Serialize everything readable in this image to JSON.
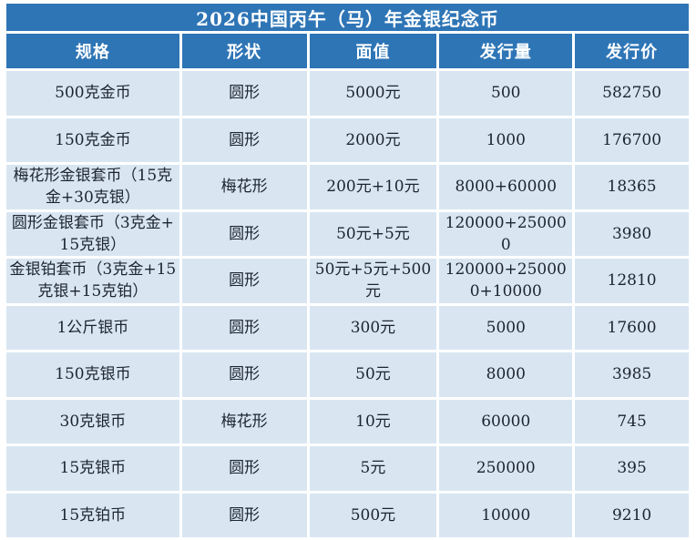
{
  "table": {
    "title": "2026中国丙午（马）年金银纪念币",
    "columns": [
      "规格",
      "形状",
      "面值",
      "发行量",
      "发行价"
    ],
    "rows": [
      [
        "500克金币",
        "圆形",
        "5000元",
        "500",
        "582750"
      ],
      [
        "150克金币",
        "圆形",
        "2000元",
        "1000",
        "176700"
      ],
      [
        "梅花形金银套币（15克金+30克银）",
        "梅花形",
        "200元+10元",
        "8000+60000",
        "18365"
      ],
      [
        "圆形金银套币（3克金+15克银）",
        "圆形",
        "50元+5元",
        "120000+250000",
        "3980"
      ],
      [
        "金银铂套币（3克金+15克银+15克铂）",
        "圆形",
        "50元+5元+500元",
        "120000+250000+10000",
        "12810"
      ],
      [
        "1公斤银币",
        "圆形",
        "300元",
        "5000",
        "17600"
      ],
      [
        "150克银币",
        "圆形",
        "50元",
        "8000",
        "3985"
      ],
      [
        "30克银币",
        "梅花形",
        "10元",
        "60000",
        "745"
      ],
      [
        "15克银币",
        "圆形",
        "5元",
        "250000",
        "395"
      ],
      [
        "15克铂币",
        "圆形",
        "500元",
        "10000",
        "9210"
      ]
    ],
    "colors": {
      "header_bg": "#2E75B6",
      "header_text": "#FFFFFF",
      "row_bg": "#D9E6F2",
      "cell_text": "#1B2430",
      "border": "#FFFFFF",
      "page_bg": "#FFFFFF"
    }
  },
  "chart_data": {
    "type": "table",
    "title": "2026中国丙午（马）年金银纪念币",
    "columns": [
      "规格",
      "形状",
      "面值",
      "发行量",
      "发行价"
    ],
    "rows": [
      [
        "500克金币",
        "圆形",
        "5000元",
        "500",
        "582750"
      ],
      [
        "150克金币",
        "圆形",
        "2000元",
        "1000",
        "176700"
      ],
      [
        "梅花形金银套币（15克金+30克银）",
        "梅花形",
        "200元+10元",
        "8000+60000",
        "18365"
      ],
      [
        "圆形金银套币（3克金+15克银）",
        "圆形",
        "50元+5元",
        "120000+250000",
        "3980"
      ],
      [
        "金银铂套币（3克金+15克银+15克铂）",
        "圆形",
        "50元+5元+500元",
        "120000+250000+10000",
        "12810"
      ],
      [
        "1公斤银币",
        "圆形",
        "300元",
        "5000",
        "17600"
      ],
      [
        "150克银币",
        "圆形",
        "50元",
        "8000",
        "3985"
      ],
      [
        "30克银币",
        "梅花形",
        "10元",
        "60000",
        "745"
      ],
      [
        "15克银币",
        "圆形",
        "5元",
        "250000",
        "395"
      ],
      [
        "15克铂币",
        "圆形",
        "500元",
        "10000",
        "9210"
      ]
    ]
  }
}
